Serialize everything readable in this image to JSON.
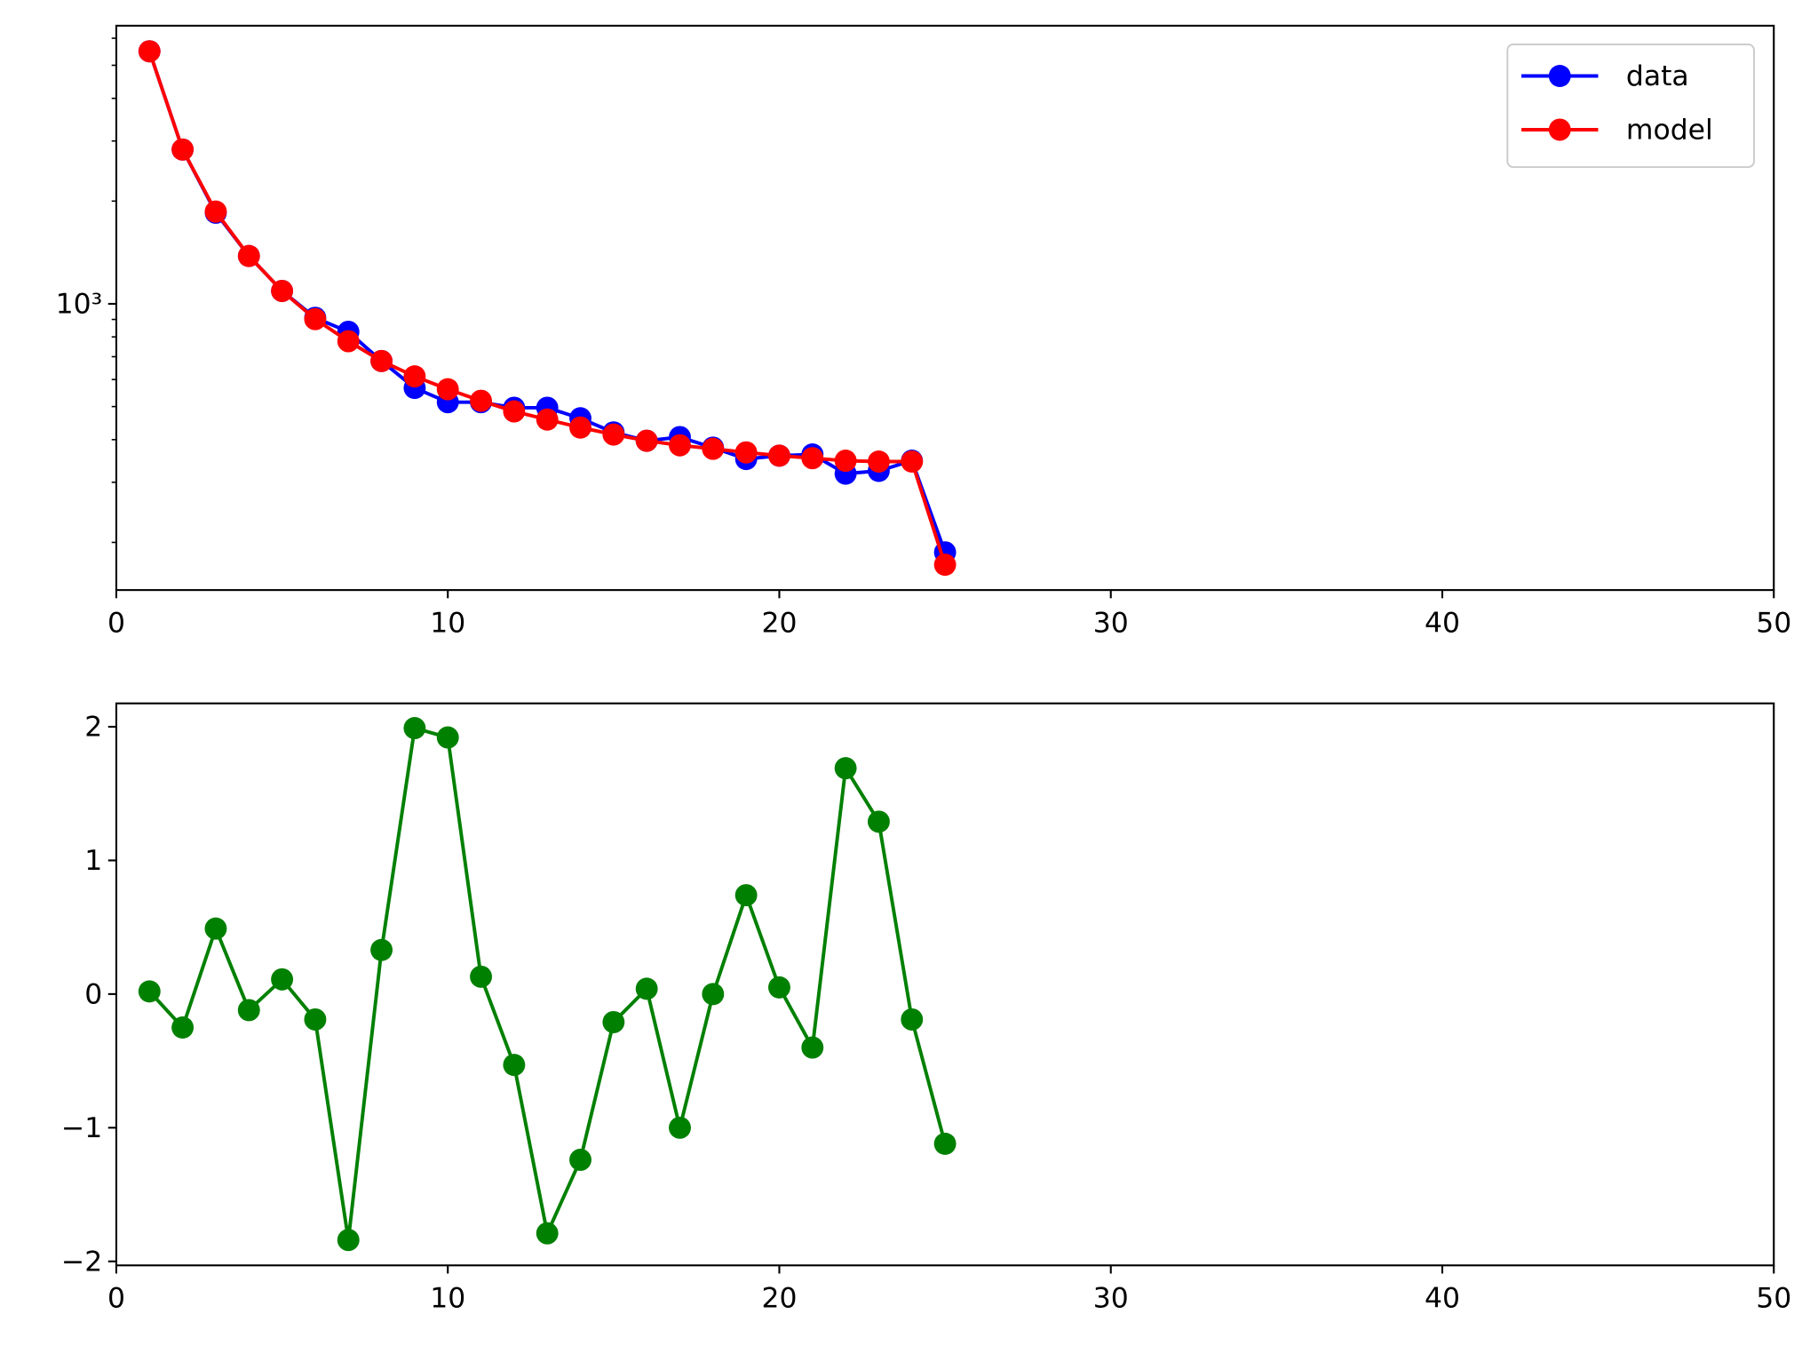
{
  "chart_data": [
    {
      "type": "line",
      "yscale": "log",
      "x": [
        1,
        2,
        3,
        4,
        5,
        6,
        7,
        8,
        9,
        10,
        11,
        12,
        13,
        14,
        15,
        16,
        17,
        18,
        19,
        20,
        21,
        22,
        23,
        24,
        25
      ],
      "series": [
        {
          "name": "data",
          "color": "blue",
          "values": [
            5495,
            2832,
            1849,
            1381,
            1091,
            910,
            828,
            680,
            567,
            515,
            515,
            496,
            496,
            462,
            420,
            397,
            407,
            379,
            351,
            359,
            362,
            318,
            324,
            347,
            187
          ]
        },
        {
          "name": "model",
          "color": "red",
          "values": [
            5495,
            2832,
            1863,
            1381,
            1091,
            902,
            777,
            680,
            613,
            562,
            520,
            484,
            458,
            434,
            414,
            397,
            385,
            376,
            367,
            359,
            353,
            347,
            345,
            345,
            172
          ]
        }
      ],
      "xlim": [
        0,
        50
      ],
      "xticks": [
        0,
        10,
        20,
        30,
        40,
        50
      ],
      "ylim": [
        145,
        6530
      ],
      "yticks": [
        {
          "value": 1000,
          "label": "10³"
        }
      ],
      "yminorticks": [
        200,
        300,
        400,
        500,
        600,
        700,
        800,
        900,
        2000,
        3000,
        4000,
        5000,
        6000
      ],
      "legend": "upper right"
    },
    {
      "type": "line",
      "x": [
        1,
        2,
        3,
        4,
        5,
        6,
        7,
        8,
        9,
        10,
        11,
        12,
        13,
        14,
        15,
        16,
        17,
        18,
        19,
        20,
        21,
        22,
        23,
        24,
        25
      ],
      "series": [
        {
          "color": "green",
          "values": [
            0.02,
            -0.25,
            0.49,
            -0.12,
            0.11,
            -0.19,
            -1.84,
            0.33,
            1.99,
            1.92,
            0.13,
            -0.53,
            -1.79,
            -1.24,
            -0.21,
            0.04,
            -1.0,
            0.0,
            0.74,
            0.05,
            -0.4,
            1.69,
            1.29,
            -0.19,
            -1.12
          ]
        }
      ],
      "xlim": [
        0,
        50
      ],
      "xticks": [
        0,
        10,
        20,
        30,
        40,
        50
      ],
      "ylim": [
        -2.03,
        2.175
      ],
      "yticks": [
        {
          "value": -2,
          "label": "−2"
        },
        {
          "value": -1,
          "label": "−1"
        },
        0,
        1,
        2
      ]
    }
  ]
}
